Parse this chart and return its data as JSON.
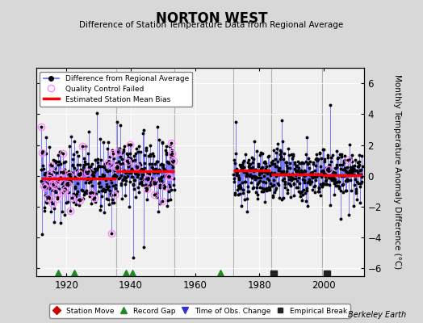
{
  "title": "NORTON WEST",
  "subtitle": "Difference of Station Temperature Data from Regional Average",
  "ylabel": "Monthly Temperature Anomaly Difference (°C)",
  "xlim": [
    1910.5,
    2012.5
  ],
  "ylim": [
    -6.5,
    7.0
  ],
  "yticks": [
    -6,
    -4,
    -2,
    0,
    2,
    4,
    6
  ],
  "xticks": [
    1920,
    1940,
    1960,
    1980,
    2000
  ],
  "background_color": "#d8d8d8",
  "plot_bg_color": "#f0f0f0",
  "grid_color": "#ffffff",
  "seed": 42,
  "bias_segments": [
    {
      "start": 1912.0,
      "end": 1935.5,
      "value": -0.15
    },
    {
      "start": 1935.6,
      "end": 1953.5,
      "value": 0.28
    },
    {
      "start": 1972.0,
      "end": 1983.5,
      "value": 0.35
    },
    {
      "start": 1983.6,
      "end": 1999.5,
      "value": 0.1
    },
    {
      "start": 1999.6,
      "end": 2012.0,
      "value": 0.05
    }
  ],
  "record_gaps": [
    1917.5,
    1922.5,
    1938.5,
    1940.5,
    1968.0
  ],
  "empirical_breaks": [
    1984.5,
    2001.0
  ],
  "line_color": "#6666ff",
  "dot_color": "#000000",
  "qc_color": "#ff88ff",
  "bias_color": "#ff0000",
  "gap_color": "#228822",
  "empbreak_color": "#222222",
  "move_color": "#cc0000",
  "tobs_color": "#3333cc",
  "seg_line_color": "#aaaaaa"
}
